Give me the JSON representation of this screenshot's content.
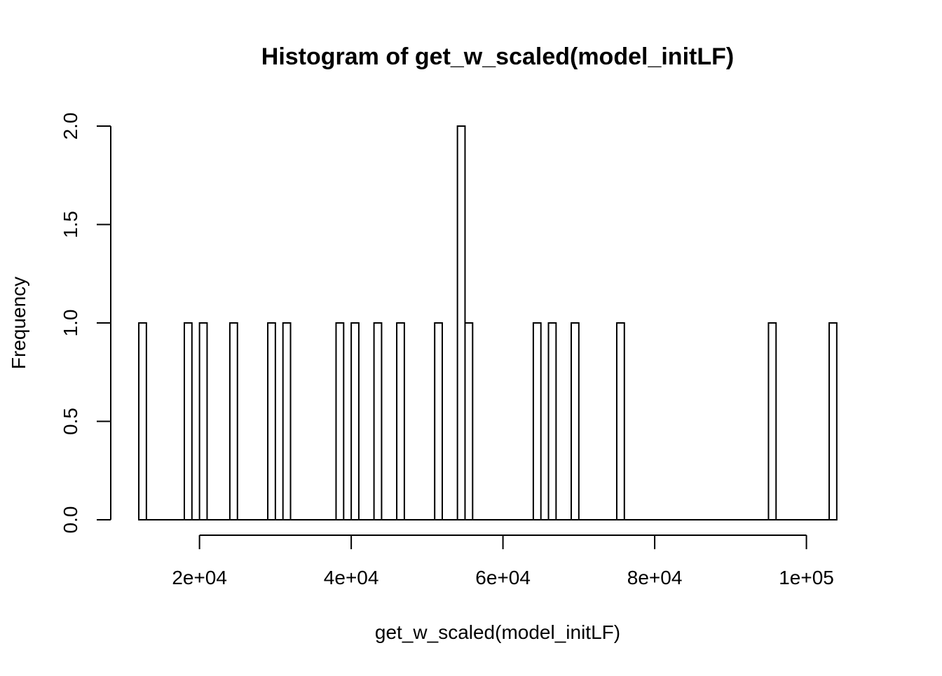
{
  "chart_data": {
    "type": "bar",
    "title": "Histogram of get_w_scaled(model_initLF)",
    "xlabel": "get_w_scaled(model_initLF)",
    "ylabel": "Frequency",
    "bin_width": 1000,
    "x_range": [
      12000,
      104000
    ],
    "xlim": [
      8300,
      106600
    ],
    "ylim": [
      0,
      2
    ],
    "x_ticks": [
      {
        "value": 20000,
        "label": "2e+04"
      },
      {
        "value": 40000,
        "label": "4e+04"
      },
      {
        "value": 60000,
        "label": "6e+04"
      },
      {
        "value": 80000,
        "label": "8e+04"
      },
      {
        "value": 100000,
        "label": "1e+05"
      }
    ],
    "y_ticks": [
      {
        "value": 0,
        "label": "0.0"
      },
      {
        "value": 0.5,
        "label": "0.5"
      },
      {
        "value": 1,
        "label": "1.0"
      },
      {
        "value": 1.5,
        "label": "1.5"
      },
      {
        "value": 2,
        "label": "2.0"
      }
    ],
    "bins": [
      {
        "x0": 12000,
        "x1": 13000,
        "count": 1
      },
      {
        "x0": 18000,
        "x1": 19000,
        "count": 1
      },
      {
        "x0": 20000,
        "x1": 21000,
        "count": 1
      },
      {
        "x0": 24000,
        "x1": 25000,
        "count": 1
      },
      {
        "x0": 29000,
        "x1": 30000,
        "count": 1
      },
      {
        "x0": 31000,
        "x1": 32000,
        "count": 1
      },
      {
        "x0": 38000,
        "x1": 39000,
        "count": 1
      },
      {
        "x0": 40000,
        "x1": 41000,
        "count": 1
      },
      {
        "x0": 43000,
        "x1": 44000,
        "count": 1
      },
      {
        "x0": 46000,
        "x1": 47000,
        "count": 1
      },
      {
        "x0": 51000,
        "x1": 52000,
        "count": 1
      },
      {
        "x0": 54000,
        "x1": 55000,
        "count": 2
      },
      {
        "x0": 55000,
        "x1": 56000,
        "count": 1
      },
      {
        "x0": 64000,
        "x1": 65000,
        "count": 1
      },
      {
        "x0": 66000,
        "x1": 67000,
        "count": 1
      },
      {
        "x0": 69000,
        "x1": 70000,
        "count": 1
      },
      {
        "x0": 75000,
        "x1": 76000,
        "count": 1
      },
      {
        "x0": 95000,
        "x1": 96000,
        "count": 1
      },
      {
        "x0": 103000,
        "x1": 104000,
        "count": 1
      }
    ],
    "grid": false,
    "legend": "none"
  }
}
